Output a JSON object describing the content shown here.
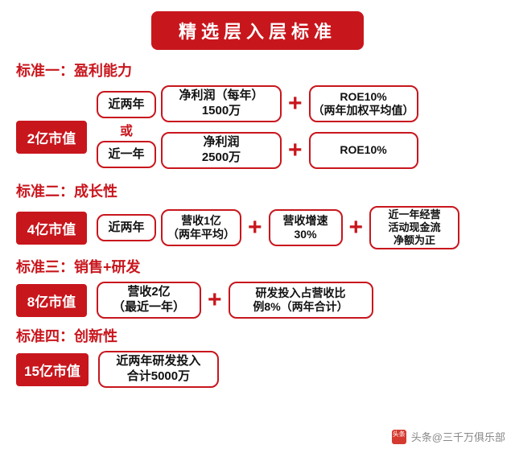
{
  "colors": {
    "brand": "#c8161d",
    "bg": "#ffffff",
    "text": "#111111"
  },
  "title": "精选层入层标准",
  "watermark": "头条@三千万俱乐部",
  "std1": {
    "label": "标准一：盈利能力",
    "mv": "2亿市值",
    "or": "或",
    "rowA": {
      "period": "近两年",
      "profit_l1": "净利润（每年）",
      "profit_l2": "1500万",
      "roe_l1": "ROE10%",
      "roe_l2": "（两年加权平均值）"
    },
    "rowB": {
      "period": "近一年",
      "profit_l1": "净利润",
      "profit_l2": "2500万",
      "roe_l1": "ROE10%"
    }
  },
  "std2": {
    "label": "标准二：成长性",
    "mv": "4亿市值",
    "period": "近两年",
    "rev_l1": "营收1亿",
    "rev_l2": "（两年平均）",
    "growth_l1": "营收增速",
    "growth_l2": "30%",
    "cash_l1": "近一年经营",
    "cash_l2": "活动现金流",
    "cash_l3": "净额为正"
  },
  "std3": {
    "label": "标准三：销售+研发",
    "mv": "8亿市值",
    "rev_l1": "营收2亿",
    "rev_l2": "（最近一年）",
    "rd_l1": "研发投入占营收比",
    "rd_l2": "例8%（两年合计）"
  },
  "std4": {
    "label": "标准四：创新性",
    "mv": "15亿市值",
    "rd_l1": "近两年研发投入",
    "rd_l2": "合计5000万"
  }
}
